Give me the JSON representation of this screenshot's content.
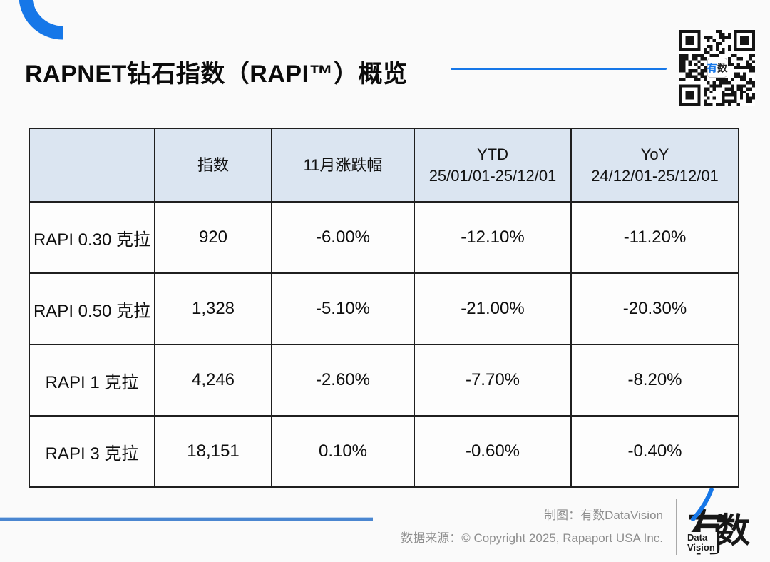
{
  "header": {
    "title": "RAPNET钻石指数（RAPI™）概览",
    "qr_center_char1": "有",
    "qr_center_char2": "数"
  },
  "table": {
    "columns": [
      {
        "line1": "",
        "line2": ""
      },
      {
        "line1": "指数",
        "line2": ""
      },
      {
        "line1": "11月涨跌幅",
        "line2": ""
      },
      {
        "line1": "YTD",
        "line2": "25/01/01-25/12/01"
      },
      {
        "line1": "YoY",
        "line2": "24/12/01-25/12/01"
      }
    ],
    "rows": [
      {
        "label": "RAPI 0.30 克拉",
        "index": "920",
        "monthly": "-6.00%",
        "ytd": "-12.10%",
        "yoy": "-11.20%"
      },
      {
        "label": "RAPI 0.50 克拉",
        "index": "1,328",
        "monthly": "-5.10%",
        "ytd": "-21.00%",
        "yoy": "-20.30%"
      },
      {
        "label": "RAPI 1 克拉",
        "index": "4,246",
        "monthly": "-2.60%",
        "ytd": "-7.70%",
        "yoy": "-8.20%"
      },
      {
        "label": "RAPI 3 克拉",
        "index": "18,151",
        "monthly": "0.10%",
        "ytd": "-0.60%",
        "yoy": "-0.40%"
      }
    ]
  },
  "footer": {
    "credit": "制图：有数DataVision",
    "source": "数据来源：© Copyright 2025, Rapaport USA Inc.",
    "logo_char1": "有",
    "logo_char2": "数",
    "logo_sub_line1": "Data",
    "logo_sub_line2": "Vision"
  },
  "colors": {
    "accent": "#1677e8",
    "footer-line": "#4a86d0",
    "header-bg": "#dbe5f1",
    "border": "#1f1f1f",
    "bg": "#fafafa",
    "muted": "#8e8e8e"
  },
  "chart_data": {
    "type": "table",
    "title": "RAPNET钻石指数（RAPI™）概览",
    "columns": [
      "",
      "指数",
      "11月涨跌幅",
      "YTD 25/01/01-25/12/01",
      "YoY 24/12/01-25/12/01"
    ],
    "rows": [
      [
        "RAPI 0.30 克拉",
        "920",
        "-6.00%",
        "-12.10%",
        "-11.20%"
      ],
      [
        "RAPI 0.50 克拉",
        "1,328",
        "-5.10%",
        "-21.00%",
        "-20.30%"
      ],
      [
        "RAPI 1 克拉",
        "4,246",
        "-2.60%",
        "-7.70%",
        "-8.20%"
      ],
      [
        "RAPI 3 克拉",
        "18,151",
        "0.10%",
        "-0.60%",
        "-0.40%"
      ]
    ],
    "source": "© Copyright 2025, Rapaport USA Inc.",
    "credit": "有数DataVision"
  }
}
